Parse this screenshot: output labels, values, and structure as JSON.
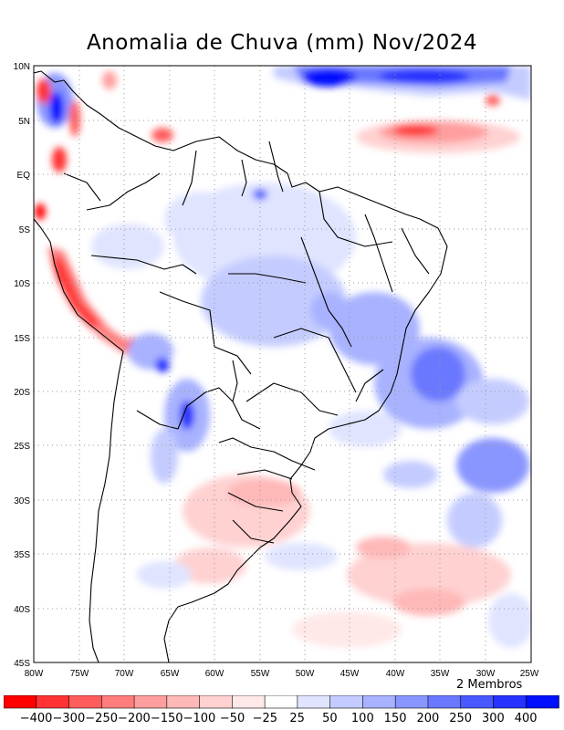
{
  "title": "Anomalia de Chuva (mm) Nov/2024",
  "members_note": "2 Membros",
  "x_axis_labels": [
    "80W",
    "75W",
    "70W",
    "65W",
    "60W",
    "55W",
    "50W",
    "45W",
    "40W",
    "35W",
    "30W",
    "25W"
  ],
  "y_axis_labels": [
    "10N",
    "5N",
    "EQ",
    "5S",
    "10S",
    "15S",
    "20S",
    "25S",
    "30S",
    "35S",
    "40S",
    "45S"
  ],
  "colorbar": {
    "labels": [
      "−400",
      "−300",
      "−250",
      "−200",
      "−150",
      "−100",
      "−50",
      "−25",
      "25",
      "50",
      "100",
      "150",
      "200",
      "250",
      "300",
      "400"
    ],
    "colors": [
      "#ff0000",
      "#ff3333",
      "#ff5c5c",
      "#ff7d7d",
      "#ff9e9e",
      "#ffb8b8",
      "#ffd1d1",
      "#ffe8e8",
      "#ffffff",
      "#e0e4ff",
      "#c4ccff",
      "#a8b2ff",
      "#8a96ff",
      "#6a78ff",
      "#4a58ff",
      "#2832ff",
      "#0010ff"
    ]
  },
  "colors": {
    "ocean_background": "#ffffff",
    "grid": "#9a9a9a",
    "coast": "#000000"
  }
}
